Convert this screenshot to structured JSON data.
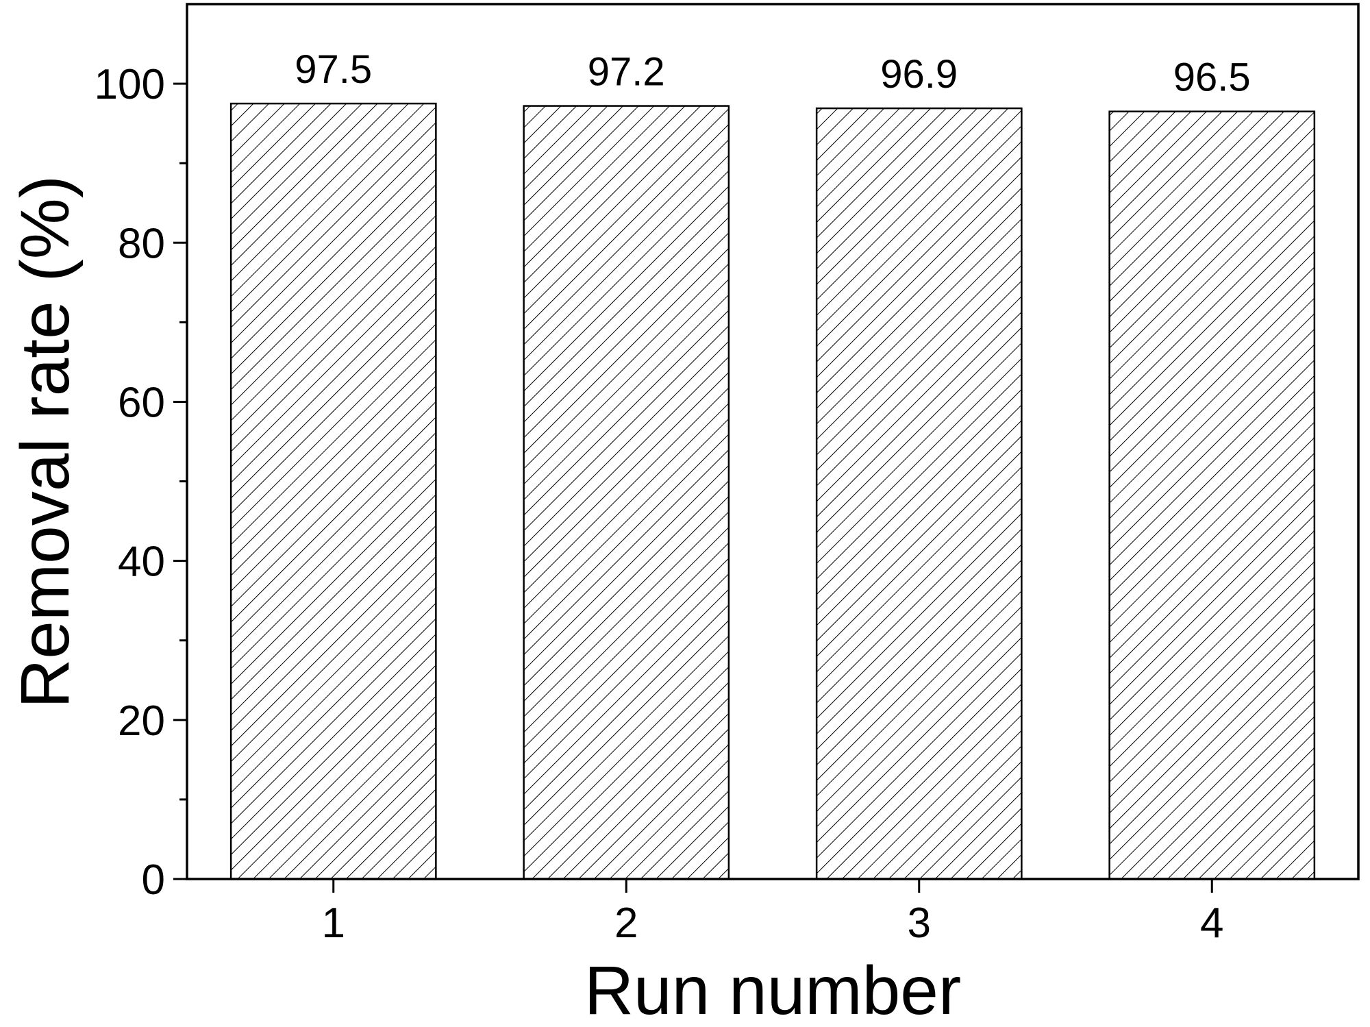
{
  "chart_data": {
    "type": "bar",
    "categories": [
      "1",
      "2",
      "3",
      "4"
    ],
    "values": [
      97.5,
      97.2,
      96.9,
      96.5
    ],
    "color": "#000000",
    "hatch": "diagonal",
    "show_value_labels": true,
    "x_label": "Run number",
    "y_label": "Removal rate (%)",
    "ylim": [
      0,
      110
    ],
    "yticks": [
      0,
      20,
      40,
      60,
      80,
      100
    ],
    "yminorticks": [
      10,
      30,
      50,
      70,
      90
    ],
    "grid": false
  }
}
